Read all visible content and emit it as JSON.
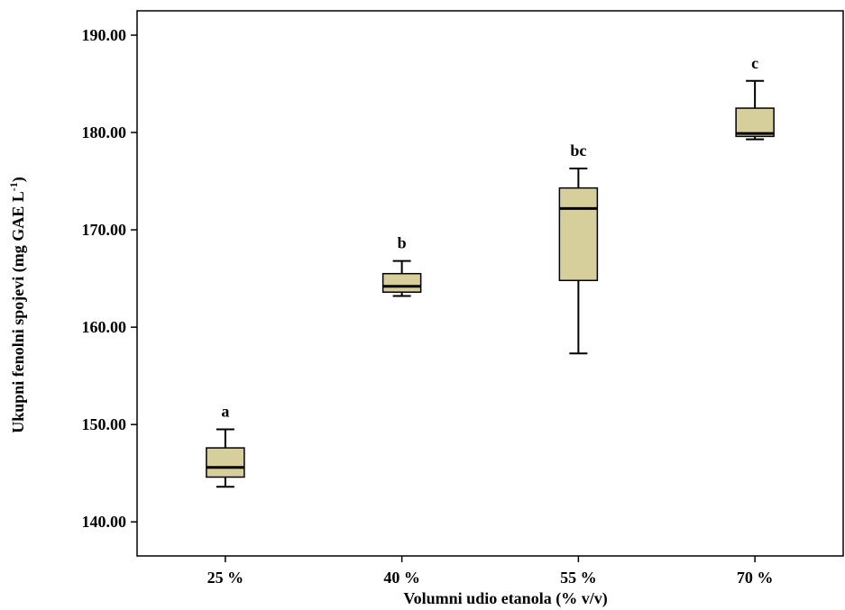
{
  "chart_data": {
    "type": "box",
    "title": "",
    "xlabel": "Volumni udio etanola (% v/v)",
    "ylabel_main": "Ukupni fenolni spojevi (mg GAE L",
    "ylabel_sup": "-1",
    "ylabel_close": ")",
    "ylim": [
      136.5,
      192.5
    ],
    "yticks": [
      140,
      150,
      160,
      170,
      180,
      190
    ],
    "ytick_labels": [
      "140.00",
      "150.00",
      "160.00",
      "170.00",
      "180.00",
      "190.00"
    ],
    "categories": [
      "25 %",
      "40 %",
      "55 %",
      "70 %"
    ],
    "box_color": "#d6cf9b",
    "grid": false,
    "legend": "none",
    "boxes": [
      {
        "category": "25 %",
        "min": 143.6,
        "q1": 144.6,
        "median": 145.6,
        "q3": 147.6,
        "max": 149.5,
        "letter": "a"
      },
      {
        "category": "40 %",
        "min": 163.2,
        "q1": 163.6,
        "median": 164.2,
        "q3": 165.5,
        "max": 166.8,
        "letter": "b"
      },
      {
        "category": "55 %",
        "min": 157.3,
        "q1": 164.8,
        "median": 172.2,
        "q3": 174.3,
        "max": 176.3,
        "letter": "bc"
      },
      {
        "category": "70 %",
        "min": 179.3,
        "q1": 179.6,
        "median": 179.9,
        "q3": 182.5,
        "max": 185.3,
        "letter": "c"
      }
    ]
  }
}
